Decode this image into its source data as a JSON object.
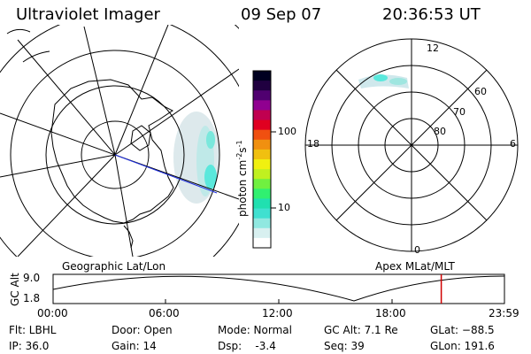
{
  "header": {
    "instrument": "Ultraviolet Imager",
    "date": "09 Sep 07",
    "time": "20:36:53 UT"
  },
  "geo_panel": {
    "label": "Geographic Lat/Lon"
  },
  "colorbar": {
    "label": "photon cm",
    "label_sup1": "-2",
    "label_mid": "s",
    "label_sup2": "-1",
    "ticks": [
      "100",
      "10"
    ],
    "colors": [
      "#000020",
      "#200040",
      "#500070",
      "#900090",
      "#c00050",
      "#e00020",
      "#f05010",
      "#f09010",
      "#f0c010",
      "#f0f010",
      "#c0f020",
      "#70f040",
      "#30f070",
      "#20e0b0",
      "#40e0d0",
      "#90e8e0",
      "#d8f0f0",
      "#ffffff"
    ]
  },
  "mlt_panel": {
    "label": "Apex MLat/MLT",
    "hour_labels": [
      "12",
      "18",
      "6",
      "0"
    ],
    "lat_labels": [
      "60",
      "70",
      "80"
    ]
  },
  "alt_plot": {
    "axis_label": "GC Alt",
    "y_ticks": [
      "9.0",
      "1.8"
    ],
    "x_ticks": [
      "00:00",
      "06:00",
      "12:00",
      "18:00",
      "23:59"
    ],
    "current_time_fraction": 0.86
  },
  "footer": {
    "col1": [
      "Flt: LBHL",
      "IP: 36.0"
    ],
    "col2": [
      "Door: Open",
      "Gain: 14"
    ],
    "col3": [
      "Mode: Normal",
      "Dsp:    -3.4"
    ],
    "col4": [
      "GC Alt: 7.1 Re",
      "Seq: 39"
    ],
    "col5": [
      "GLat: −88.5",
      "GLon: 191.6"
    ]
  }
}
